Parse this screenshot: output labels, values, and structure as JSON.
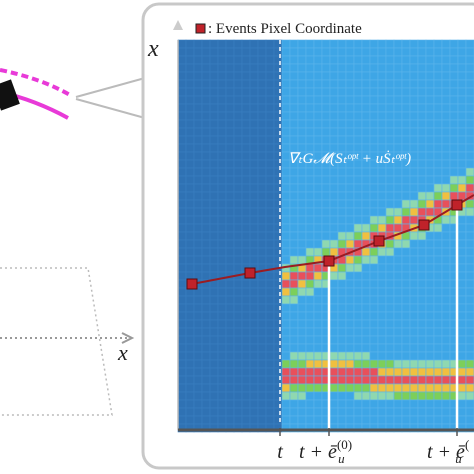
{
  "legend": ": Events Pixel Coordinate",
  "panel_axis_label": "x",
  "left_axis_label": "x",
  "formula": "∇ₜG𝓜(Sₜᵒᵖᵗ + uṠₜᵒᵖᵗ)",
  "time_labels": [
    {
      "main": "t"
    },
    {
      "main": "t + ē",
      "sup": "(0)",
      "sub": "u"
    },
    {
      "main": "t + ē",
      "sup": "(",
      "sub": "u"
    }
  ]
}
